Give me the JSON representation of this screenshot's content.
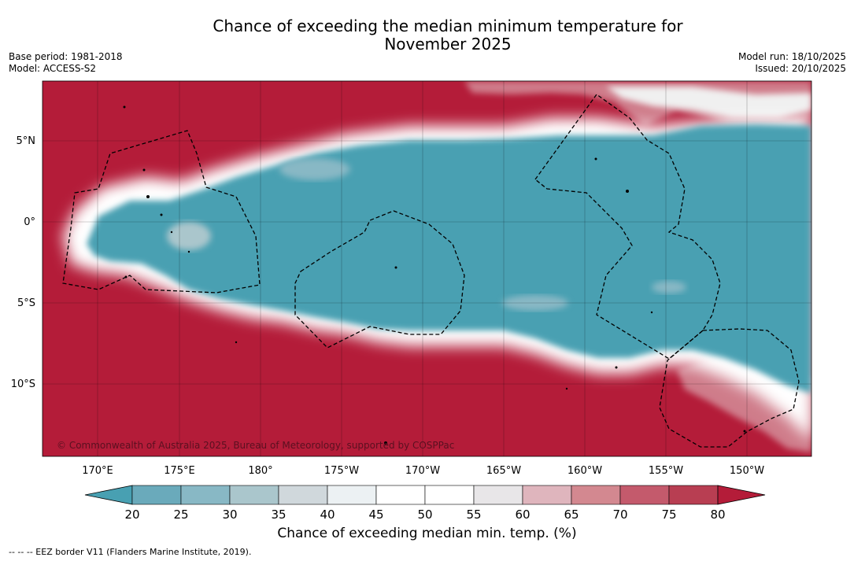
{
  "header": {
    "title_line1": "Chance of exceeding the median minimum temperature for",
    "title_line2": "November 2025",
    "base_period": "Base period: 1981-2018",
    "model": "Model: ACCESS-S2",
    "model_run": "Model run: 18/10/2025",
    "issued": "Issued: 20/10/2025"
  },
  "map": {
    "lat_labels": [
      "5°N",
      "0°",
      "5°S",
      "10°S"
    ],
    "lon_labels": [
      "170°E",
      "175°E",
      "180°",
      "175°W",
      "170°W",
      "165°W",
      "160°W",
      "155°W",
      "150°W"
    ],
    "copyright": "© Commonwealth of Australia 2025, Bureau of Meteorology, supported by COSPPac",
    "colors": {
      "teal": "#48a0b2",
      "crimson": "#b41c39",
      "white": "#ffffff"
    }
  },
  "colorbar": {
    "ticks": [
      "20",
      "25",
      "30",
      "35",
      "40",
      "45",
      "50",
      "55",
      "60",
      "65",
      "70",
      "75",
      "80"
    ],
    "colors": [
      "#48a0b2",
      "#6aaabb",
      "#88b8c5",
      "#aac6cc",
      "#d0d8dc",
      "#ecf1f3",
      "#ffffff",
      "#ffffff",
      "#e8e6e8",
      "#dfb5bd",
      "#d38890",
      "#c45a6c",
      "#b83e52",
      "#b41c39"
    ],
    "label": "Chance of exceeding median min. temp. (%)"
  },
  "footnote": "--  --  -- EEZ border V11 (Flanders Marine Institute, 2019)."
}
